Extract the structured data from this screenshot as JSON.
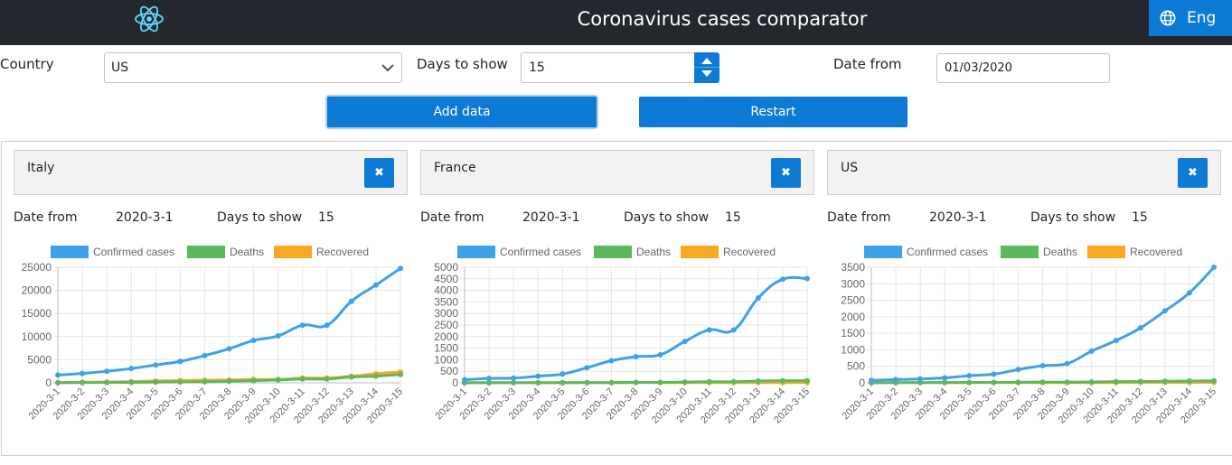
{
  "header": {
    "title": "Coronavirus cases comparator",
    "lang_label": "Eng",
    "colors": {
      "bar": "#24282e",
      "accent": "#0d7bd6",
      "logo": "#61dafb"
    }
  },
  "form": {
    "country_label": "Country",
    "country_value": "US",
    "days_label": "Days to show",
    "days_value": "15",
    "date_label": "Date from",
    "date_value": "01/03/2020",
    "add_label": "Add data",
    "restart_label": "Restart"
  },
  "cards": [
    {
      "country": "Italy",
      "date_from_label": "Date from",
      "date_from": "2020-3-1",
      "days_label": "Days to show",
      "days": "15"
    },
    {
      "country": "France",
      "date_from_label": "Date from",
      "date_from": "2020-3-1",
      "days_label": "Days to show",
      "days": "15"
    },
    {
      "country": "US",
      "date_from_label": "Date from",
      "date_from": "2020-3-1",
      "days_label": "Days to show",
      "days": "15"
    }
  ],
  "chart_data": [
    {
      "type": "line",
      "title": "Italy",
      "x": [
        "2020-3-1",
        "2020-3-2",
        "2020-3-3",
        "2020-3-4",
        "2020-3-5",
        "2020-3-6",
        "2020-3-7",
        "2020-3-8",
        "2020-3-9",
        "2020-3-10",
        "2020-3-11",
        "2020-3-12",
        "2020-3-13",
        "2020-3-14",
        "2020-3-15"
      ],
      "ylim": [
        0,
        25000
      ],
      "yticks": [
        0,
        5000,
        10000,
        15000,
        20000,
        25000
      ],
      "grid": true,
      "legend": "top",
      "series": [
        {
          "name": "Confirmed cases",
          "color": "#3ea2ea",
          "values": [
            1694,
            2036,
            2502,
            3089,
            3858,
            4636,
            5883,
            7375,
            9172,
            10149,
            12462,
            12462,
            17660,
            21157,
            24747
          ]
        },
        {
          "name": "Deaths",
          "color": "#5cb85c",
          "values": [
            34,
            52,
            79,
            107,
            148,
            197,
            233,
            366,
            463,
            631,
            827,
            827,
            1266,
            1441,
            1809
          ]
        },
        {
          "name": "Recovered",
          "color": "#f9a825",
          "values": [
            83,
            149,
            160,
            276,
            414,
            523,
            589,
            622,
            724,
            724,
            1045,
            1045,
            1439,
            1966,
            2335
          ]
        }
      ]
    },
    {
      "type": "line",
      "title": "France",
      "x": [
        "2020-3-1",
        "2020-3-2",
        "2020-3-3",
        "2020-3-4",
        "2020-3-5",
        "2020-3-6",
        "2020-3-7",
        "2020-3-8",
        "2020-3-9",
        "2020-3-10",
        "2020-3-11",
        "2020-3-12",
        "2020-3-13",
        "2020-3-14",
        "2020-3-15"
      ],
      "ylim": [
        0,
        5000
      ],
      "yticks": [
        0,
        500,
        1000,
        1500,
        2000,
        2500,
        3000,
        3500,
        4000,
        4500,
        5000
      ],
      "grid": true,
      "legend": "top",
      "series": [
        {
          "name": "Confirmed cases",
          "color": "#3ea2ea",
          "values": [
            130,
            191,
            204,
            288,
            380,
            656,
            957,
            1134,
            1217,
            1792,
            2289,
            2289,
            3672,
            4480,
            4513
          ]
        },
        {
          "name": "Deaths",
          "color": "#5cb85c",
          "values": [
            2,
            3,
            4,
            4,
            6,
            9,
            11,
            19,
            19,
            33,
            48,
            48,
            79,
            91,
            91
          ]
        },
        {
          "name": "Recovered",
          "color": "#f9a825",
          "values": [
            12,
            12,
            12,
            12,
            12,
            12,
            12,
            12,
            12,
            12,
            12,
            12,
            12,
            12,
            12
          ]
        }
      ]
    },
    {
      "type": "line",
      "title": "US",
      "x": [
        "2020-3-1",
        "2020-3-2",
        "2020-3-3",
        "2020-3-4",
        "2020-3-5",
        "2020-3-6",
        "2020-3-7",
        "2020-3-8",
        "2020-3-9",
        "2020-3-10",
        "2020-3-11",
        "2020-3-12",
        "2020-3-13",
        "2020-3-14",
        "2020-3-15"
      ],
      "ylim": [
        0,
        3500
      ],
      "yticks": [
        0,
        500,
        1000,
        1500,
        2000,
        2500,
        3000,
        3500
      ],
      "grid": true,
      "legend": "top",
      "series": [
        {
          "name": "Confirmed cases",
          "color": "#3ea2ea",
          "values": [
            74,
            98,
            118,
            149,
            217,
            262,
            402,
            518,
            583,
            959,
            1281,
            1663,
            2179,
            2727,
            3499
          ]
        },
        {
          "name": "Deaths",
          "color": "#5cb85c",
          "values": [
            1,
            6,
            7,
            11,
            12,
            14,
            17,
            21,
            22,
            28,
            36,
            40,
            47,
            54,
            63
          ]
        },
        {
          "name": "Recovered",
          "color": "#f9a825",
          "values": [
            7,
            7,
            7,
            7,
            7,
            7,
            7,
            7,
            7,
            8,
            8,
            12,
            12,
            12,
            12
          ]
        }
      ]
    }
  ]
}
